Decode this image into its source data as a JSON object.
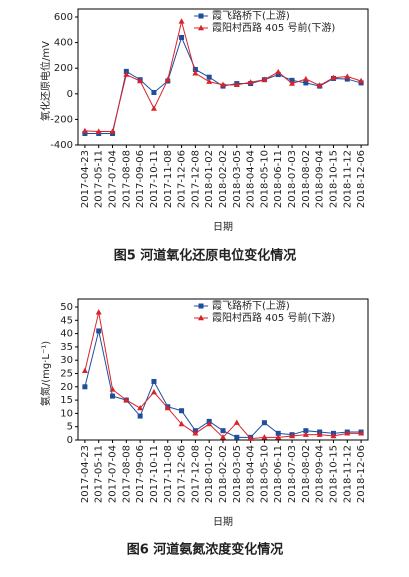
{
  "chart_data": [
    {
      "type": "line",
      "ylabel": "氧化还原电位/mV",
      "xlabel": "日期",
      "caption": "图5 河道氧化还原电位变化情况",
      "categories": [
        "2017-04-23",
        "2017-05-11",
        "2017-07-04",
        "2017-08-08",
        "2017-09-06",
        "2017-10-11",
        "2017-11-08",
        "2017-12-06",
        "2017-12-08",
        "2018-01-02",
        "2018-02-02",
        "2018-03-05",
        "2018-04-04",
        "2018-05-10",
        "2018-06-11",
        "2018-07-03",
        "2018-08-02",
        "2018-09-04",
        "2018-10-15",
        "2018-11-12",
        "2018-12-06"
      ],
      "series": [
        {
          "name": "霞飞路桥下(上游)",
          "color": "#1f4e9c",
          "marker": "square",
          "values": [
            -310,
            -310,
            -310,
            175,
            110,
            10,
            100,
            440,
            190,
            130,
            60,
            80,
            80,
            110,
            150,
            105,
            85,
            60,
            120,
            115,
            85
          ]
        },
        {
          "name": "霞阳村西路 405 号前(下游)",
          "color": "#d9232a",
          "marker": "triangle",
          "values": [
            -290,
            -295,
            -295,
            150,
            100,
            -115,
            110,
            565,
            160,
            95,
            70,
            70,
            90,
            110,
            170,
            80,
            115,
            65,
            125,
            135,
            100
          ]
        }
      ],
      "ylim": [
        -400,
        600
      ],
      "yticks": [
        -400,
        -200,
        0,
        200,
        400,
        600
      ],
      "grid": false,
      "legend": "top-right"
    },
    {
      "type": "line",
      "ylabel": "氨氮/(mg·L⁻¹)",
      "xlabel": "日期",
      "caption": "图6 河道氨氮浓度变化情况",
      "categories": [
        "2017-04-23",
        "2017-05-11",
        "2017-07-04",
        "2017-08-08",
        "2017-09-06",
        "2017-10-11",
        "2017-11-08",
        "2017-12-06",
        "2017-12-08",
        "2018-01-02",
        "2018-02-02",
        "2018-03-05",
        "2018-04-04",
        "2018-05-10",
        "2018-06-11",
        "2018-07-03",
        "2018-08-02",
        "2018-09-04",
        "2018-10-15",
        "2018-11-12",
        "2018-12-06"
      ],
      "series": [
        {
          "name": "霞飞路桥下(上游)",
          "color": "#1f4e9c",
          "marker": "square",
          "values": [
            20,
            41,
            16.5,
            15,
            9,
            22,
            12.5,
            11,
            3.5,
            7,
            3.5,
            1,
            1,
            6.5,
            2.5,
            2,
            3.5,
            3,
            2.5,
            3,
            3
          ]
        },
        {
          "name": "霞阳村西路 405 号前(下游)",
          "color": "#d9232a",
          "marker": "triangle",
          "values": [
            26,
            48,
            19,
            15,
            12,
            18,
            12,
            6,
            2.5,
            6,
            1,
            6.5,
            0.5,
            1,
            1,
            1.5,
            2,
            2,
            1.5,
            2.5,
            2.5
          ]
        }
      ],
      "ylim": [
        0,
        50
      ],
      "yticks": [
        0,
        5,
        10,
        15,
        20,
        25,
        30,
        35,
        40,
        45,
        50
      ],
      "grid": false,
      "legend": "top-right"
    }
  ]
}
